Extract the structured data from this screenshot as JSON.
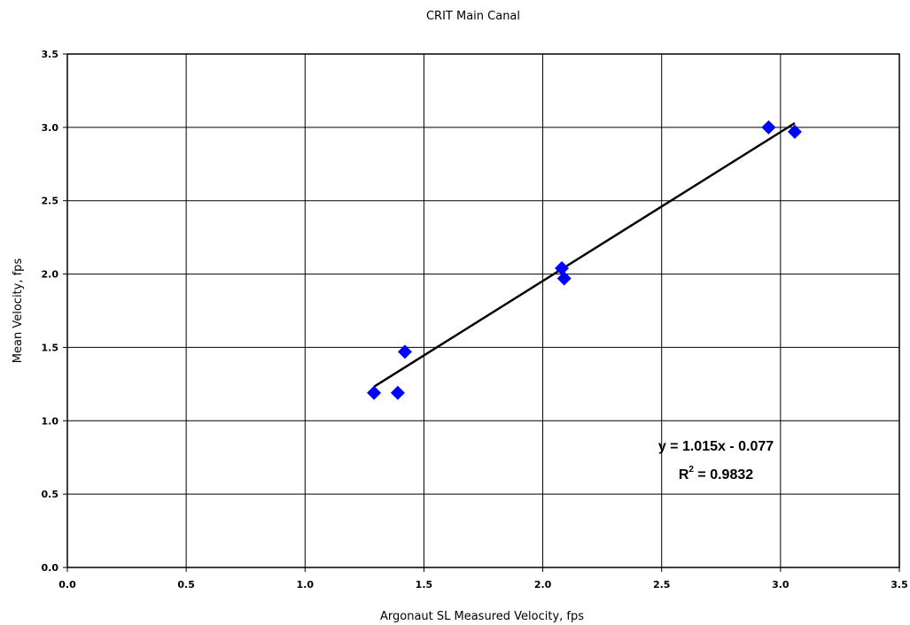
{
  "chart_data": {
    "type": "scatter",
    "title": "CRIT Main Canal",
    "xlabel": "Argonaut SL Measured Velocity, fps",
    "ylabel": "Mean Velocity, fps",
    "xlim": [
      0,
      3.5
    ],
    "ylim": [
      0,
      3.5
    ],
    "x_ticks": [
      "0.0",
      "0.5",
      "1.0",
      "1.5",
      "2.0",
      "2.5",
      "3.0",
      "3.5"
    ],
    "y_ticks": [
      "0.0",
      "0.5",
      "1.0",
      "1.5",
      "2.0",
      "2.5",
      "3.0",
      "3.5"
    ],
    "grid": true,
    "marker": "diamond",
    "marker_color": "#0000ff",
    "points": [
      {
        "x": 1.29,
        "y": 1.19
      },
      {
        "x": 1.39,
        "y": 1.19
      },
      {
        "x": 1.42,
        "y": 1.47
      },
      {
        "x": 2.08,
        "y": 2.04
      },
      {
        "x": 2.09,
        "y": 1.97
      },
      {
        "x": 2.95,
        "y": 3.0
      },
      {
        "x": 3.06,
        "y": 2.97
      }
    ],
    "trendline": {
      "slope": 1.015,
      "intercept": -0.077,
      "x_range": [
        1.29,
        3.06
      ],
      "color": "#000000"
    },
    "annotation": {
      "equation": "y = 1.015x - 0.077",
      "r2_prefix": "R",
      "r2_sup": "2",
      "r2_value": " = 0.9832"
    }
  }
}
